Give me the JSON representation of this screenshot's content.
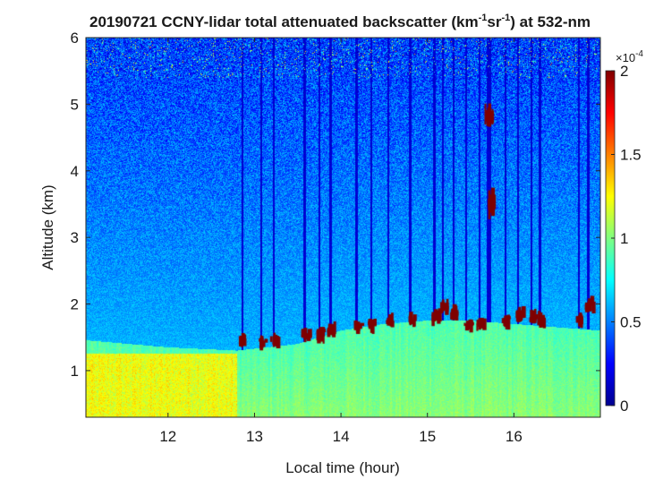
{
  "chart_data": {
    "type": "heatmap",
    "title": {
      "prefix": "20190721 CCNY-lidar total attenuated backscatter (km",
      "sup1": "-1",
      "mid": "sr",
      "sup2": "-1",
      "suffix": ") at 532-nm"
    },
    "xlabel": "Local time (hour)",
    "ylabel": "Altitude (km)",
    "xlim": [
      11.05,
      17.0
    ],
    "ylim": [
      0.3,
      6.0
    ],
    "xticks": [
      {
        "value": 12,
        "label": "12"
      },
      {
        "value": 13,
        "label": "13"
      },
      {
        "value": 14,
        "label": "14"
      },
      {
        "value": 15,
        "label": "15"
      },
      {
        "value": 16,
        "label": "16"
      }
    ],
    "yticks": [
      {
        "value": 1,
        "label": "1"
      },
      {
        "value": 2,
        "label": "2"
      },
      {
        "value": 3,
        "label": "3"
      },
      {
        "value": 4,
        "label": "4"
      },
      {
        "value": 5,
        "label": "5"
      },
      {
        "value": 6,
        "label": "6"
      }
    ],
    "colorbar": {
      "clim": [
        0,
        2
      ],
      "exponent": {
        "base": "×10",
        "power": "-4"
      },
      "ticks": [
        {
          "value": 0,
          "label": "0"
        },
        {
          "value": 0.5,
          "label": "0.5"
        },
        {
          "value": 1,
          "label": "1"
        },
        {
          "value": 1.5,
          "label": "1.5"
        },
        {
          "value": 2,
          "label": "2"
        }
      ],
      "colormap": "jet"
    },
    "features": {
      "boundary_layer_top_km": [
        {
          "t": 11.1,
          "h": 1.45
        },
        {
          "t": 12.0,
          "h": 1.35
        },
        {
          "t": 12.8,
          "h": 1.3
        },
        {
          "t": 13.5,
          "h": 1.4
        },
        {
          "t": 14.0,
          "h": 1.6
        },
        {
          "t": 14.5,
          "h": 1.7
        },
        {
          "t": 15.0,
          "h": 1.75
        },
        {
          "t": 15.5,
          "h": 1.75
        },
        {
          "t": 16.0,
          "h": 1.7
        },
        {
          "t": 16.5,
          "h": 1.65
        },
        {
          "t": 17.0,
          "h": 1.6
        }
      ],
      "surface_maximum": {
        "t_range": [
          11.1,
          12.4
        ],
        "h_range": [
          0.35,
          1.2
        ],
        "value": 1.4
      },
      "cloud_events": [
        {
          "t": 12.86,
          "h": 1.45
        },
        {
          "t": 13.08,
          "h": 1.42
        },
        {
          "t": 13.22,
          "h": 1.45
        },
        {
          "t": 13.58,
          "h": 1.52
        },
        {
          "t": 13.75,
          "h": 1.55
        },
        {
          "t": 13.88,
          "h": 1.6
        },
        {
          "t": 14.18,
          "h": 1.65
        },
        {
          "t": 14.35,
          "h": 1.68
        },
        {
          "t": 14.55,
          "h": 1.75
        },
        {
          "t": 14.8,
          "h": 1.75
        },
        {
          "t": 15.08,
          "h": 1.8
        },
        {
          "t": 15.18,
          "h": 1.95
        },
        {
          "t": 15.3,
          "h": 1.85
        },
        {
          "t": 15.45,
          "h": 1.7
        },
        {
          "t": 15.6,
          "h": 1.7
        },
        {
          "t": 15.7,
          "h": 4.8
        },
        {
          "t": 15.73,
          "h": 3.5
        },
        {
          "t": 15.9,
          "h": 1.75
        },
        {
          "t": 16.05,
          "h": 1.85
        },
        {
          "t": 16.2,
          "h": 1.8
        },
        {
          "t": 16.3,
          "h": 1.75
        },
        {
          "t": 16.75,
          "h": 1.75
        },
        {
          "t": 16.86,
          "h": 2.0
        }
      ]
    }
  }
}
